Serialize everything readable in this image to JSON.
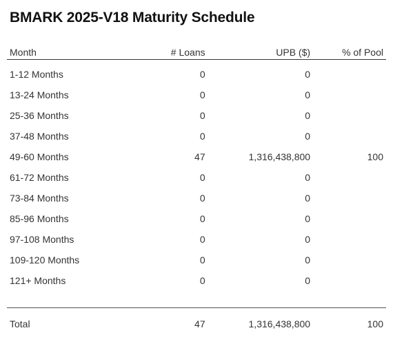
{
  "title": "BMARK 2025-V18 Maturity Schedule",
  "columns": {
    "month": "Month",
    "loans": "# Loans",
    "upb": "UPB ($)",
    "pool": "% of Pool"
  },
  "rows": [
    {
      "month": "1-12 Months",
      "loans": "0",
      "upb": "0",
      "pool": ""
    },
    {
      "month": "13-24 Months",
      "loans": "0",
      "upb": "0",
      "pool": ""
    },
    {
      "month": "25-36 Months",
      "loans": "0",
      "upb": "0",
      "pool": ""
    },
    {
      "month": "37-48 Months",
      "loans": "0",
      "upb": "0",
      "pool": ""
    },
    {
      "month": "49-60 Months",
      "loans": "47",
      "upb": "1,316,438,800",
      "pool": "100"
    },
    {
      "month": "61-72 Months",
      "loans": "0",
      "upb": "0",
      "pool": ""
    },
    {
      "month": "73-84 Months",
      "loans": "0",
      "upb": "0",
      "pool": ""
    },
    {
      "month": "85-96 Months",
      "loans": "0",
      "upb": "0",
      "pool": ""
    },
    {
      "month": "97-108 Months",
      "loans": "0",
      "upb": "0",
      "pool": ""
    },
    {
      "month": "109-120 Months",
      "loans": "0",
      "upb": "0",
      "pool": ""
    },
    {
      "month": "121+ Months",
      "loans": "0",
      "upb": "0",
      "pool": ""
    }
  ],
  "total": {
    "month": "Total",
    "loans": "47",
    "upb": "1,316,438,800",
    "pool": "100"
  }
}
